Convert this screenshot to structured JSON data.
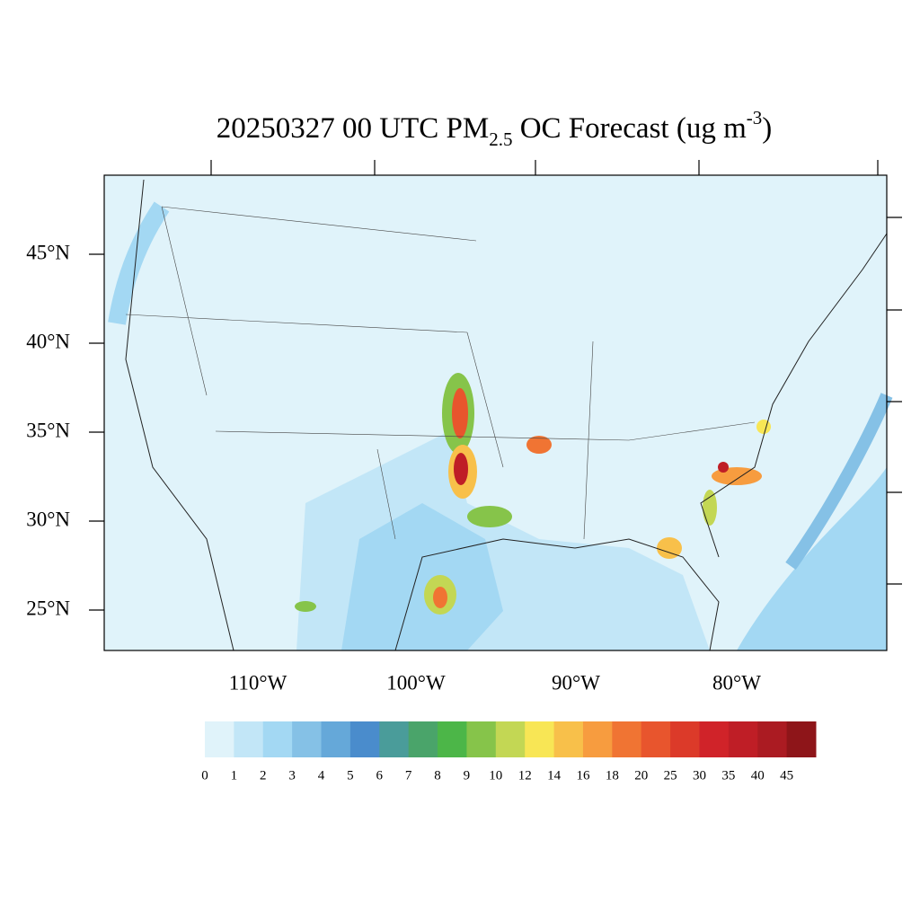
{
  "title": {
    "parts": [
      "20250327 00 UTC PM",
      "2.5",
      " OC Forecast (ug m",
      "-3",
      ")"
    ]
  },
  "map": {
    "lat_labels": [
      "45°N",
      "40°N",
      "35°N",
      "30°N",
      "25°N"
    ],
    "lon_labels": [
      "110°W",
      "100°W",
      "90°W",
      "80°W"
    ]
  },
  "colorbar": {
    "labels": [
      0,
      1,
      2,
      3,
      4,
      5,
      6,
      7,
      8,
      9,
      10,
      12,
      14,
      16,
      18,
      20,
      25,
      30,
      35,
      40,
      45
    ],
    "colors": [
      "#e0f3fa",
      "#c2e6f7",
      "#a3d8f3",
      "#85c1e6",
      "#65a8d9",
      "#4a8ccc",
      "#4a9c9a",
      "#4aa46a",
      "#4cb648",
      "#86c44a",
      "#c3d754",
      "#f8e655",
      "#f8c04a",
      "#f79c3f",
      "#f07433",
      "#e8552d",
      "#dc3a29",
      "#d02329",
      "#bf1e26",
      "#ab1b22",
      "#8e1519"
    ]
  }
}
